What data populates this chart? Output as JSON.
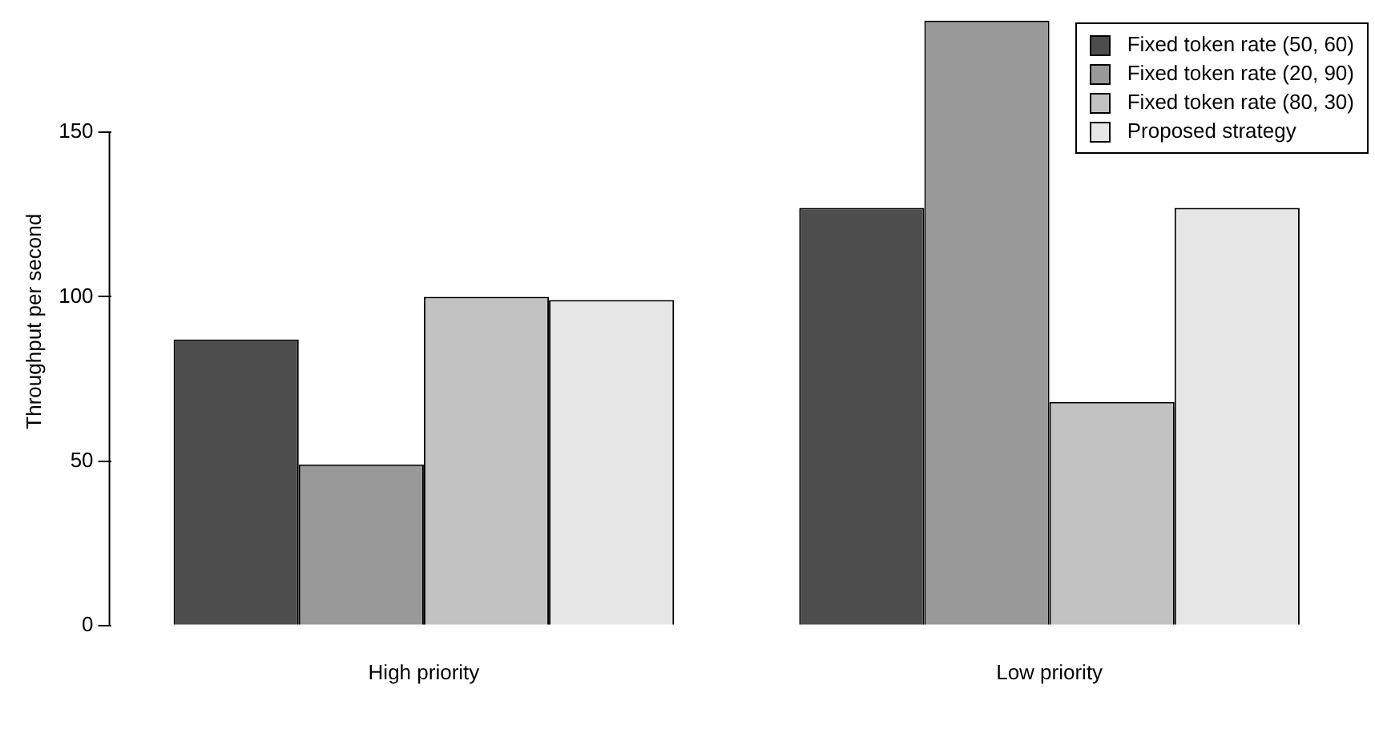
{
  "chart_data": {
    "type": "bar",
    "ylabel": "Throughput per second",
    "categories": [
      "High priority",
      "Low priority"
    ],
    "series": [
      {
        "name": "Fixed token rate (50, 60)",
        "color": "#4d4d4d",
        "values": [
          87,
          127
        ]
      },
      {
        "name": "Fixed token rate (20, 90)",
        "color": "#999999",
        "values": [
          49,
          184
        ]
      },
      {
        "name": "Fixed token rate (80, 30)",
        "color": "#c2c2c2",
        "values": [
          100,
          68
        ]
      },
      {
        "name": "Proposed strategy",
        "color": "#e6e6e6",
        "values": [
          99,
          127
        ]
      }
    ],
    "ylim": [
      0,
      185
    ],
    "yticks": [
      0,
      50,
      100,
      150
    ],
    "grid": false,
    "legend": "top right"
  }
}
